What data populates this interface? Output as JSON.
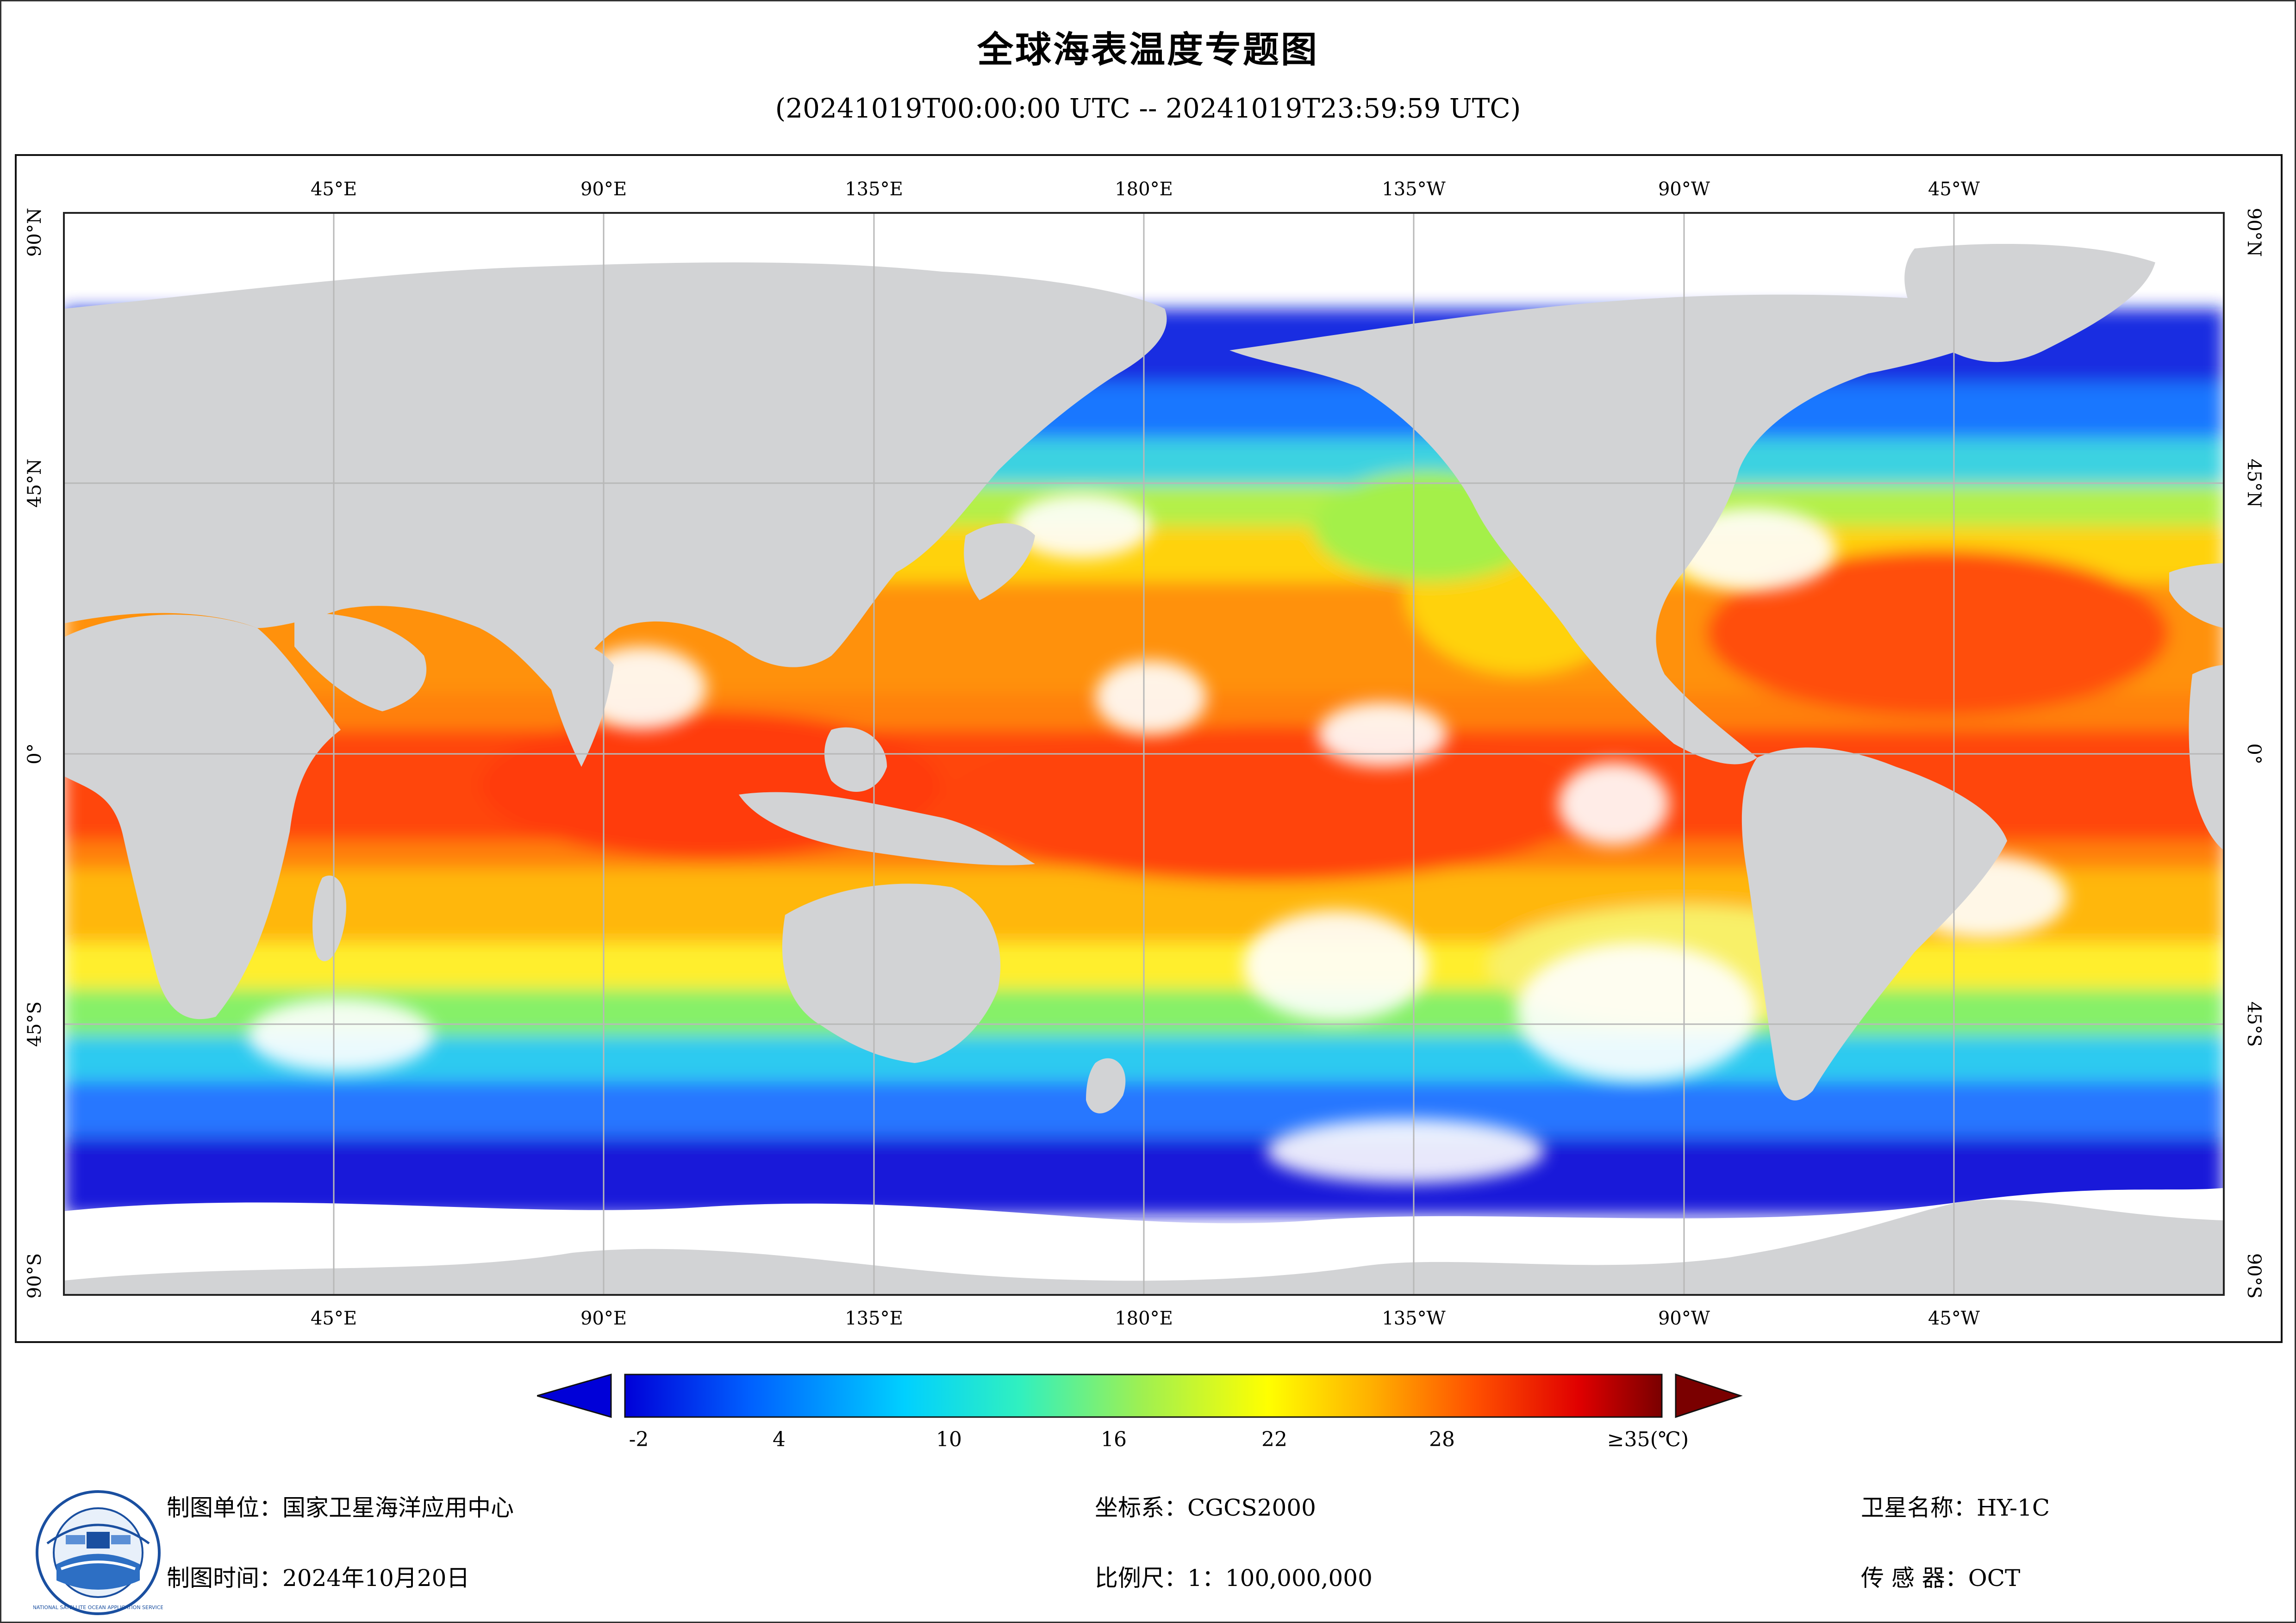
{
  "title": "全球海表温度专题图",
  "subtitle": "(20241019T00:00:00 UTC -- 20241019T23:59:59 UTC)",
  "map": {
    "lon_ticks_top": [
      "45°E",
      "90°E",
      "135°E",
      "180°E",
      "135°W",
      "90°W",
      "45°W"
    ],
    "lon_ticks_bottom": [
      "45°E",
      "90°E",
      "135°E",
      "180°E",
      "135°W",
      "90°W",
      "45°W"
    ],
    "lat_ticks": [
      "90°N",
      "45°N",
      "0°",
      "45°S",
      "90°S"
    ],
    "land_color": "#d2d3d5",
    "no_data_color": "#ffffff",
    "grid": true
  },
  "colorbar": {
    "labels": [
      "-2",
      "4",
      "10",
      "16",
      "22",
      "28",
      "≥35(℃)"
    ],
    "min": -2,
    "max": 35,
    "unit": "℃",
    "colors": [
      "#0000d8",
      "#0066ff",
      "#00c8ff",
      "#30f0c0",
      "#a0f050",
      "#ffff00",
      "#ffb000",
      "#ff5000",
      "#e00000",
      "#7a0000"
    ]
  },
  "footer": {
    "org": "制图单位：国家卫星海洋应用中心",
    "date": "制图时间：2024年10月20日",
    "crs": "坐标系：CGCS2000",
    "scale": "比例尺：1：100,000,000",
    "satellite": "卫星名称：HY-1C",
    "sensor": "传 感 器：OCT"
  },
  "logo": {
    "ring_text": "NATIONAL SATELLITE OCEAN APPLICATION SERVICE"
  }
}
